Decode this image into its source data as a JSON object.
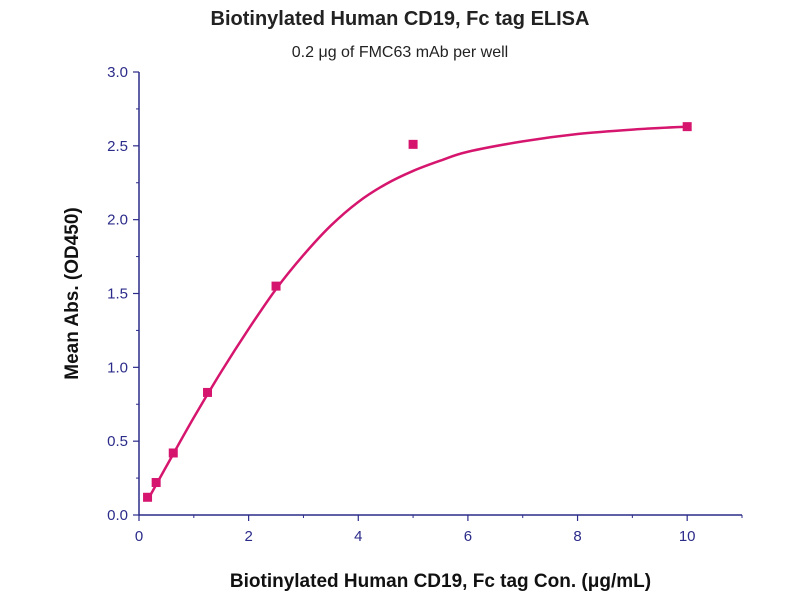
{
  "chart_data": {
    "type": "scatter",
    "title": "Biotinylated Human CD19, Fc tag ELISA",
    "subtitle": "0.2 μg of FMC63 mAb per well",
    "xlabel": "Biotinylated Human CD19, Fc tag Con. (μg/mL)",
    "ylabel": "Mean Abs. (OD450)",
    "xlim": [
      0,
      11
    ],
    "ylim": [
      0,
      3.0
    ],
    "xticks": [
      "0",
      "2",
      "4",
      "6",
      "8",
      "10"
    ],
    "yticks": [
      "0.0",
      "0.5",
      "1.0",
      "1.5",
      "2.0",
      "2.5",
      "3.0"
    ],
    "grid": false,
    "series": [
      {
        "points": [
          {
            "x": 0.156,
            "y": 0.12
          },
          {
            "x": 0.313,
            "y": 0.22
          },
          {
            "x": 0.625,
            "y": 0.42
          },
          {
            "x": 1.25,
            "y": 0.83
          },
          {
            "x": 2.5,
            "y": 1.55
          },
          {
            "x": 5,
            "y": 2.51
          },
          {
            "x": 10,
            "y": 2.63
          }
        ],
        "fit_curve": [
          {
            "x": 0.156,
            "y": 0.1
          },
          {
            "x": 0.5,
            "y": 0.33
          },
          {
            "x": 1,
            "y": 0.66
          },
          {
            "x": 1.5,
            "y": 0.97
          },
          {
            "x": 2,
            "y": 1.26
          },
          {
            "x": 2.5,
            "y": 1.53
          },
          {
            "x": 3,
            "y": 1.76
          },
          {
            "x": 3.5,
            "y": 1.96
          },
          {
            "x": 4,
            "y": 2.12
          },
          {
            "x": 4.5,
            "y": 2.24
          },
          {
            "x": 5,
            "y": 2.33
          },
          {
            "x": 5.5,
            "y": 2.4
          },
          {
            "x": 6,
            "y": 2.46
          },
          {
            "x": 7,
            "y": 2.53
          },
          {
            "x": 8,
            "y": 2.58
          },
          {
            "x": 9,
            "y": 2.61
          },
          {
            "x": 10,
            "y": 2.63
          }
        ]
      }
    ],
    "colors": {
      "series": "#d6166e",
      "axis": "#2b2b8a"
    }
  }
}
